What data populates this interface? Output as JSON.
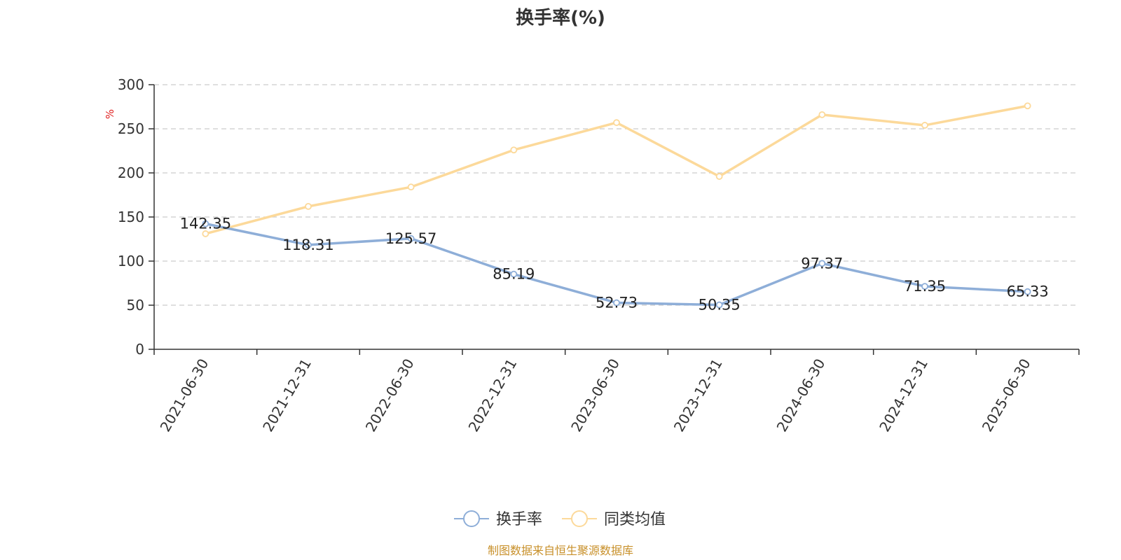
{
  "chart_data": {
    "type": "line",
    "title": "换手率(%)",
    "unit": "%",
    "categories": [
      "2021-06-30",
      "2021-12-31",
      "2022-06-30",
      "2022-12-31",
      "2023-06-30",
      "2023-12-31",
      "2024-06-30",
      "2024-12-31",
      "2025-06-30"
    ],
    "series": [
      {
        "name": "换手率",
        "color": "#8eaed8",
        "values": [
          142.35,
          118.31,
          125.57,
          85.19,
          52.73,
          50.35,
          97.37,
          71.35,
          65.33
        ],
        "data_labels": [
          "142.35",
          "118.31",
          "125.57",
          "85.19",
          "52.73",
          "50.35",
          "97.37",
          "71.35",
          "65.33"
        ]
      },
      {
        "name": "同类均值",
        "color": "#fcd99a",
        "values": [
          131,
          162,
          184,
          226,
          257,
          196,
          266,
          254,
          276
        ]
      }
    ],
    "ylim": [
      0,
      300
    ],
    "yticks": [
      "0",
      "50",
      "100",
      "150",
      "200",
      "250",
      "300"
    ],
    "grid": true,
    "legend_position": "bottom-center",
    "source": "制图数据来自恒生聚源数据库"
  }
}
